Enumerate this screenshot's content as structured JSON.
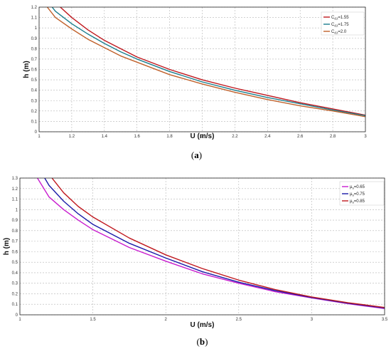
{
  "chart_data": [
    {
      "type": "line",
      "panel_caption": {
        "open": "(",
        "letter": "a",
        "close": ")"
      },
      "xlabel": "U (m/s)",
      "ylabel": "h (m)",
      "xlim": [
        1,
        3
      ],
      "ylim": [
        0,
        1.2
      ],
      "x_ticks": [
        "1",
        "1.2",
        "1.4",
        "1.6",
        "1.8",
        "2",
        "2.2",
        "2.4",
        "2.6",
        "2.8",
        "3"
      ],
      "y_ticks": [
        "0",
        "0.1",
        "0.2",
        "0.3",
        "0.4",
        "0.5",
        "0.6",
        "0.7",
        "0.8",
        "0.9",
        "1",
        "1.1",
        "1.2"
      ],
      "grid": true,
      "legend_position": "top-right",
      "series": [
        {
          "name": "C",
          "name_sub": "d,t",
          "name_suffix": "=1.55",
          "color": "#c0191f",
          "points": [
            [
              1.13,
              1.2
            ],
            [
              1.2,
              1.1
            ],
            [
              1.3,
              0.98
            ],
            [
              1.4,
              0.88
            ],
            [
              1.5,
              0.8
            ],
            [
              1.6,
              0.72
            ],
            [
              1.8,
              0.6
            ],
            [
              2.0,
              0.5
            ],
            [
              2.2,
              0.42
            ],
            [
              2.4,
              0.35
            ],
            [
              2.6,
              0.28
            ],
            [
              2.8,
              0.22
            ],
            [
              3.0,
              0.16
            ]
          ]
        },
        {
          "name": "C",
          "name_sub": "d,t",
          "name_suffix": "=1.75",
          "color": "#1b7e8e",
          "points": [
            [
              1.08,
              1.2
            ],
            [
              1.1,
              1.16
            ],
            [
              1.2,
              1.04
            ],
            [
              1.3,
              0.94
            ],
            [
              1.4,
              0.85
            ],
            [
              1.5,
              0.77
            ],
            [
              1.6,
              0.7
            ],
            [
              1.8,
              0.58
            ],
            [
              2.0,
              0.48
            ],
            [
              2.2,
              0.4
            ],
            [
              2.4,
              0.33
            ],
            [
              2.6,
              0.27
            ],
            [
              2.8,
              0.21
            ],
            [
              3.0,
              0.155
            ]
          ]
        },
        {
          "name": "C",
          "name_sub": "d,t",
          "name_suffix": "=2.0",
          "color": "#c0612b",
          "points": [
            [
              1.05,
              1.2
            ],
            [
              1.1,
              1.1
            ],
            [
              1.2,
              0.99
            ],
            [
              1.3,
              0.89
            ],
            [
              1.4,
              0.81
            ],
            [
              1.5,
              0.73
            ],
            [
              1.6,
              0.67
            ],
            [
              1.8,
              0.55
            ],
            [
              2.0,
              0.46
            ],
            [
              2.2,
              0.38
            ],
            [
              2.4,
              0.31
            ],
            [
              2.6,
              0.25
            ],
            [
              2.8,
              0.2
            ],
            [
              3.0,
              0.145
            ]
          ]
        }
      ]
    },
    {
      "type": "line",
      "panel_caption": {
        "open": "(",
        "letter": "b",
        "close": ")"
      },
      "xlabel": "U (m/s)",
      "ylabel": "h (m)",
      "xlim": [
        1,
        3.5
      ],
      "ylim": [
        0,
        1.3
      ],
      "x_ticks": [
        "1",
        "1.5",
        "2",
        "2.5",
        "3",
        "3.5"
      ],
      "y_ticks": [
        "0",
        "0.1",
        "0.2",
        "0.3",
        "0.4",
        "0.5",
        "0.6",
        "0.7",
        "0.8",
        "0.9",
        "1",
        "1.1",
        "1.2",
        "1.3"
      ],
      "grid": true,
      "legend_position": "top-right",
      "series": [
        {
          "name": "μ",
          "name_sub": "s",
          "name_suffix": "=0.65",
          "color": "#c81ccf",
          "points": [
            [
              1.12,
              1.3
            ],
            [
              1.2,
              1.12
            ],
            [
              1.3,
              1.0
            ],
            [
              1.4,
              0.9
            ],
            [
              1.5,
              0.81
            ],
            [
              1.75,
              0.64
            ],
            [
              2.0,
              0.51
            ],
            [
              2.25,
              0.39
            ],
            [
              2.5,
              0.3
            ],
            [
              2.75,
              0.22
            ],
            [
              3.0,
              0.16
            ],
            [
              3.25,
              0.105
            ],
            [
              3.5,
              0.06
            ]
          ]
        },
        {
          "name": "μ",
          "name_sub": "s",
          "name_suffix": "=0.75",
          "color": "#1a1aa8",
          "points": [
            [
              1.17,
              1.3
            ],
            [
              1.2,
              1.23
            ],
            [
              1.3,
              1.08
            ],
            [
              1.4,
              0.96
            ],
            [
              1.5,
              0.86
            ],
            [
              1.75,
              0.68
            ],
            [
              2.0,
              0.54
            ],
            [
              2.25,
              0.41
            ],
            [
              2.5,
              0.31
            ],
            [
              2.75,
              0.23
            ],
            [
              3.0,
              0.165
            ],
            [
              3.25,
              0.11
            ],
            [
              3.5,
              0.065
            ]
          ]
        },
        {
          "name": "μ",
          "name_sub": "s",
          "name_suffix": "=0.85",
          "color": "#c0191f",
          "points": [
            [
              1.22,
              1.3
            ],
            [
              1.3,
              1.16
            ],
            [
              1.4,
              1.03
            ],
            [
              1.5,
              0.93
            ],
            [
              1.75,
              0.73
            ],
            [
              2.0,
              0.57
            ],
            [
              2.25,
              0.44
            ],
            [
              2.5,
              0.33
            ],
            [
              2.75,
              0.24
            ],
            [
              3.0,
              0.17
            ],
            [
              3.25,
              0.115
            ],
            [
              3.5,
              0.07
            ]
          ]
        }
      ]
    }
  ]
}
